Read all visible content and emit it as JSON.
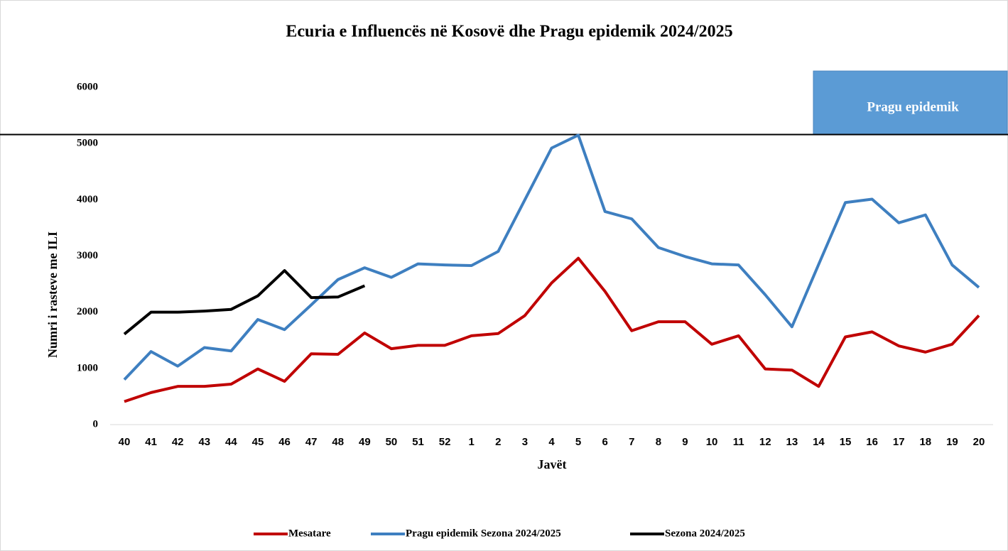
{
  "chart_data": {
    "type": "line",
    "title": "Ecuria e Influencës në Kosovë dhe Pragu epidemik 2024/2025",
    "x_label": "Javët",
    "y_label": "Numri i rasteve me ILI",
    "categories": [
      "40",
      "41",
      "42",
      "43",
      "44",
      "45",
      "46",
      "47",
      "48",
      "49",
      "50",
      "51",
      "52",
      "1",
      "2",
      "3",
      "4",
      "5",
      "6",
      "7",
      "8",
      "9",
      "10",
      "11",
      "12",
      "13",
      "14",
      "15",
      "16",
      "17",
      "18",
      "19",
      "20"
    ],
    "series": [
      {
        "name": "Mesatare",
        "color": "#c00000",
        "values": [
          410,
          570,
          680,
          680,
          720,
          990,
          770,
          1260,
          1250,
          1630,
          1350,
          1410,
          1410,
          1580,
          1620,
          1940,
          2520,
          2960,
          2370,
          1670,
          1830,
          1830,
          1430,
          1580,
          990,
          970,
          680,
          1560,
          1650,
          1400,
          1290,
          1430,
          1940
        ]
      },
      {
        "name": "Pragu epidemik Sezona 2024/2025",
        "color": "#3e7fc0",
        "values": [
          800,
          1300,
          1040,
          1370,
          1310,
          1870,
          1690,
          2130,
          2580,
          2790,
          2620,
          2860,
          2840,
          2830,
          3080,
          4000,
          4920,
          5150,
          3790,
          3660,
          3150,
          2990,
          2860,
          2840,
          2310,
          1740,
          2850,
          3950,
          4010,
          3590,
          3730,
          2840,
          2440
        ]
      },
      {
        "name": "Sezona 2024/2025",
        "color": "#000000",
        "values": [
          1610,
          2000,
          2000,
          2020,
          2050,
          2290,
          2740,
          2260,
          2270,
          2470,
          null,
          null,
          null,
          null,
          null,
          null,
          null,
          null,
          null,
          null,
          null,
          null,
          null,
          null,
          null,
          null,
          null,
          null,
          null,
          null,
          null,
          null,
          null
        ]
      }
    ],
    "threshold": {
      "label": "Pragu epidemik",
      "value": 5160,
      "color": "#5b9bd5"
    },
    "ylim": [
      0,
      6000
    ],
    "yticks": [
      0,
      1000,
      2000,
      3000,
      4000,
      5000,
      6000
    ],
    "grid": false
  }
}
